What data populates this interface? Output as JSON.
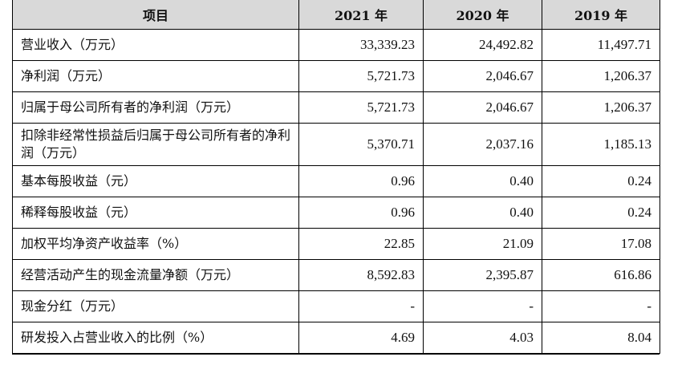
{
  "table": {
    "headers": [
      "项目",
      "2021 年",
      "2020 年",
      "2019 年"
    ],
    "rows": [
      {
        "label": "营业收入（万元）",
        "values": [
          "33,339.23",
          "24,492.82",
          "11,497.71"
        ]
      },
      {
        "label": "净利润（万元）",
        "values": [
          "5,721.73",
          "2,046.67",
          "1,206.37"
        ]
      },
      {
        "label": "归属于母公司所有者的净利润（万元）",
        "values": [
          "5,721.73",
          "2,046.67",
          "1,206.37"
        ]
      },
      {
        "label": "扣除非经常性损益后归属于母公司所有者的净利润（万元）",
        "values": [
          "5,370.71",
          "2,037.16",
          "1,185.13"
        ]
      },
      {
        "label": "基本每股收益（元）",
        "values": [
          "0.96",
          "0.40",
          "0.24"
        ]
      },
      {
        "label": "稀释每股收益（元）",
        "values": [
          "0.96",
          "0.40",
          "0.24"
        ]
      },
      {
        "label": "加权平均净资产收益率（%）",
        "values": [
          "22.85",
          "21.09",
          "17.08"
        ]
      },
      {
        "label": "经营活动产生的现金流量净额（万元）",
        "values": [
          "8,592.83",
          "2,395.87",
          "616.86"
        ]
      },
      {
        "label": "现金分红（万元）",
        "values": [
          "-",
          "-",
          "-"
        ]
      },
      {
        "label": "研发投入占营业收入的比例（%）",
        "values": [
          "4.69",
          "4.03",
          "8.04"
        ]
      }
    ]
  }
}
